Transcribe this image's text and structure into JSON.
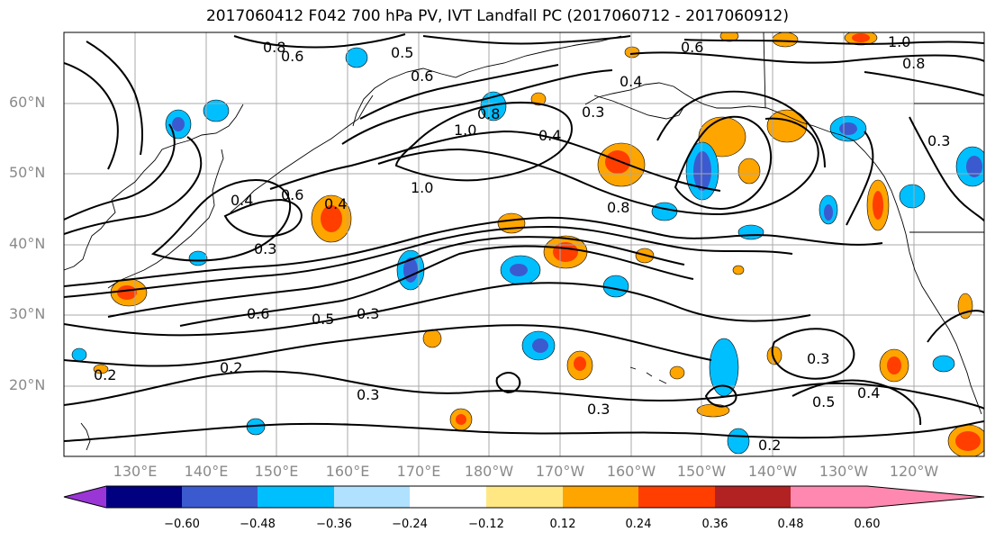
{
  "title": "2017060412 F042 700 hPa PV, IVT Landfall PC (2017060712 - 2017060912)",
  "lat_labels": [
    "60°N",
    "50°N",
    "40°N",
    "30°N",
    "20°N"
  ],
  "lon_labels": [
    "130°E",
    "140°E",
    "150°E",
    "160°E",
    "170°E",
    "180°W",
    "170°W",
    "160°W",
    "150°W",
    "140°W",
    "130°W",
    "120°W"
  ],
  "contour_labels": [
    "0.8",
    "0.6",
    "0.5",
    "0.6",
    "0.4",
    "0.3",
    "1.0",
    "0.8",
    "0.6",
    "1.0",
    "0.8",
    "0.4",
    "1.0",
    "0.8",
    "0.6",
    "0.4",
    "0.3",
    "0.6",
    "0.5",
    "0.3",
    "0.4",
    "0.2",
    "0.2",
    "0.3",
    "0.3",
    "0.2",
    "0.3",
    "0.5",
    "0.4",
    "0.3"
  ],
  "colorbar": {
    "ticks": [
      "−0.60",
      "−0.48",
      "−0.36",
      "−0.24",
      "−0.12",
      "0.12",
      "0.24",
      "0.36",
      "0.48",
      "0.60"
    ],
    "colors": [
      "#9a35d6",
      "#000080",
      "#3c5ad0",
      "#00bfff",
      "#b0e2ff",
      "#ffffff",
      "#ffe884",
      "#ffa500",
      "#ff3e00",
      "#b22222",
      "#ff88b0"
    ]
  }
}
